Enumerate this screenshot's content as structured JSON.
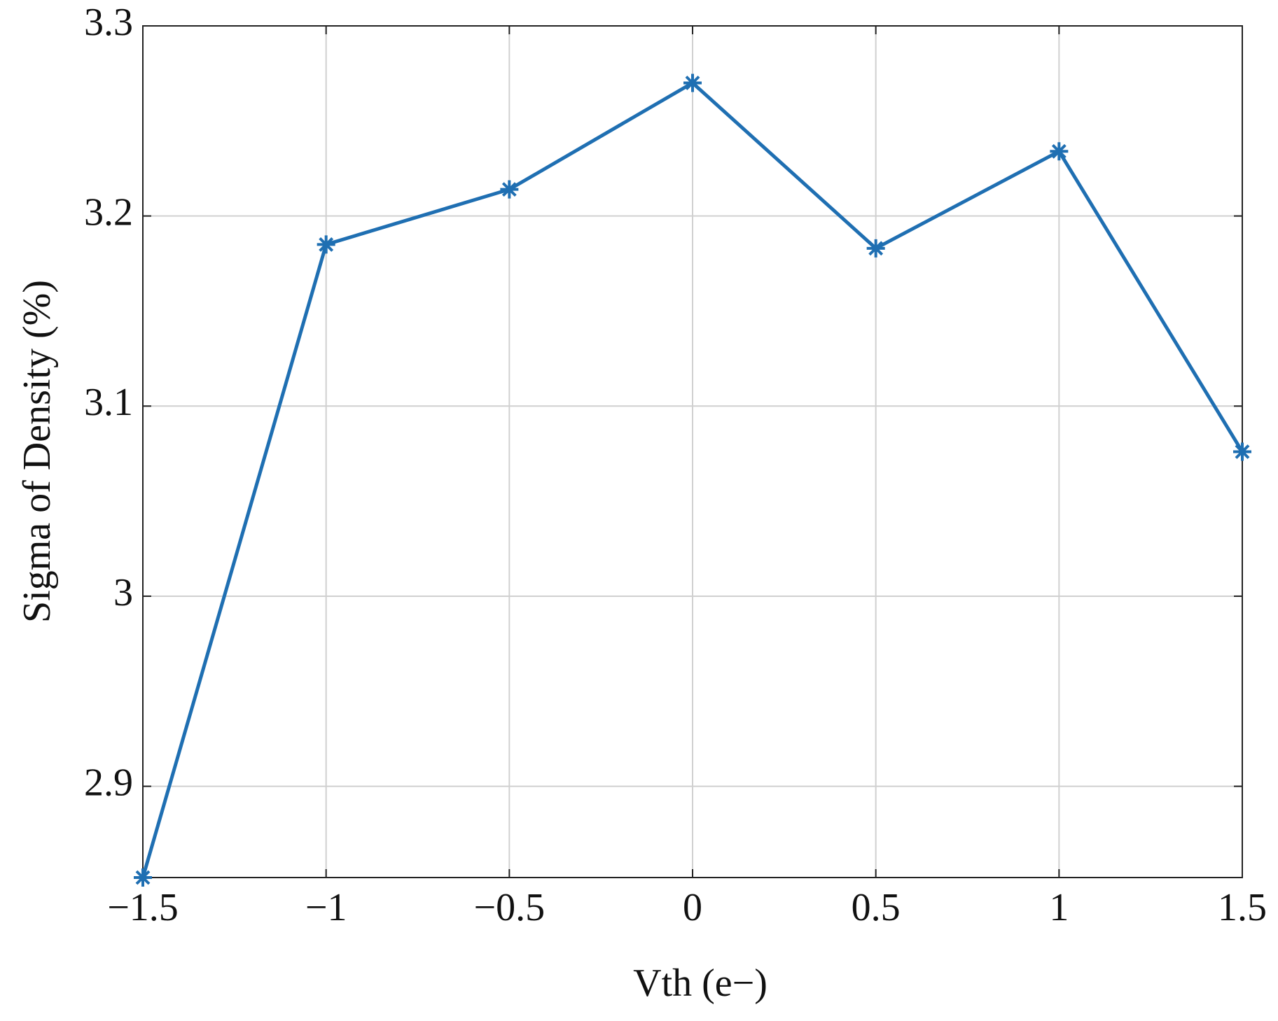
{
  "chart_data": {
    "type": "line",
    "x": [
      -1.5,
      -1,
      -0.5,
      0,
      0.5,
      1,
      1.5
    ],
    "values": [
      2.852,
      3.185,
      3.214,
      3.27,
      3.183,
      3.234,
      3.076
    ],
    "color": "#1f6fb2",
    "xlabel": "Vth (e−)",
    "ylabel": "Sigma of Density (%)",
    "xlim": [
      -1.5,
      1.5
    ],
    "xticks": [
      {
        "value": -1.5,
        "label": "−1.5"
      },
      {
        "value": -1,
        "label": "−1"
      },
      {
        "value": -0.5,
        "label": "−0.5"
      },
      0,
      0.5,
      1,
      1.5
    ],
    "ylim": [
      2.852,
      3.3
    ],
    "yticks": [
      2.9,
      3,
      3.1,
      3.2,
      3.3
    ],
    "grid": true
  }
}
